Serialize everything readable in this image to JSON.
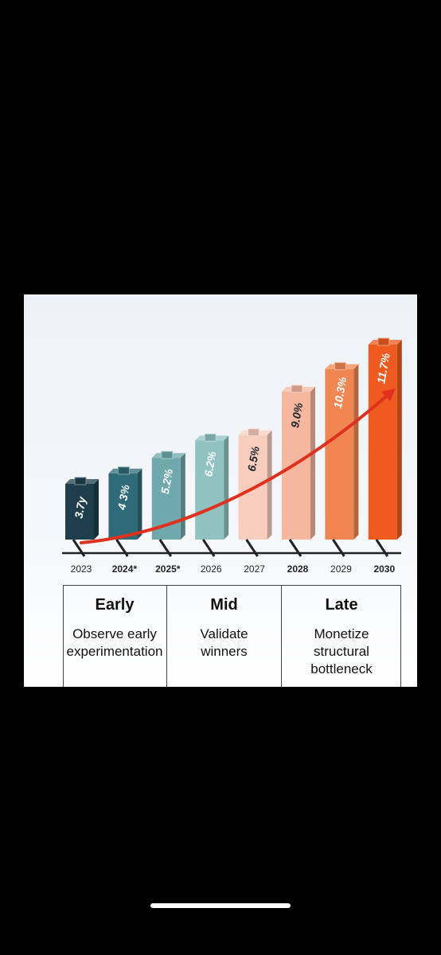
{
  "chart_data": {
    "type": "bar",
    "categories": [
      "2023",
      "2024*",
      "2025*",
      "2026",
      "2027",
      "2028",
      "2029",
      "2030"
    ],
    "values": [
      3.7,
      4.3,
      5.2,
      6.2,
      6.5,
      9.0,
      10.3,
      11.7
    ],
    "data_labels": [
      "3.7y",
      "4 3%",
      "5.2%",
      "6.2%",
      "6.5%",
      "9.0%",
      "10.3%",
      "11.7%"
    ],
    "bold_categories": [
      "2024*",
      "2025*",
      "2028",
      "2030"
    ],
    "bar_colors": [
      "#1d3f4c",
      "#2e6a78",
      "#6fa8ad",
      "#8fc2c1",
      "#f8cdbd",
      "#f6b79f",
      "#f08753",
      "#ee5a1f"
    ],
    "trend_color": "#e0301e",
    "title": "",
    "xlabel": "",
    "ylabel": ""
  },
  "phases": [
    {
      "title": "Early",
      "description": "Observe early experimentation"
    },
    {
      "title": "Mid",
      "description": "Validate winners"
    },
    {
      "title": "Late",
      "description": "Monetize structural bottleneck"
    }
  ]
}
